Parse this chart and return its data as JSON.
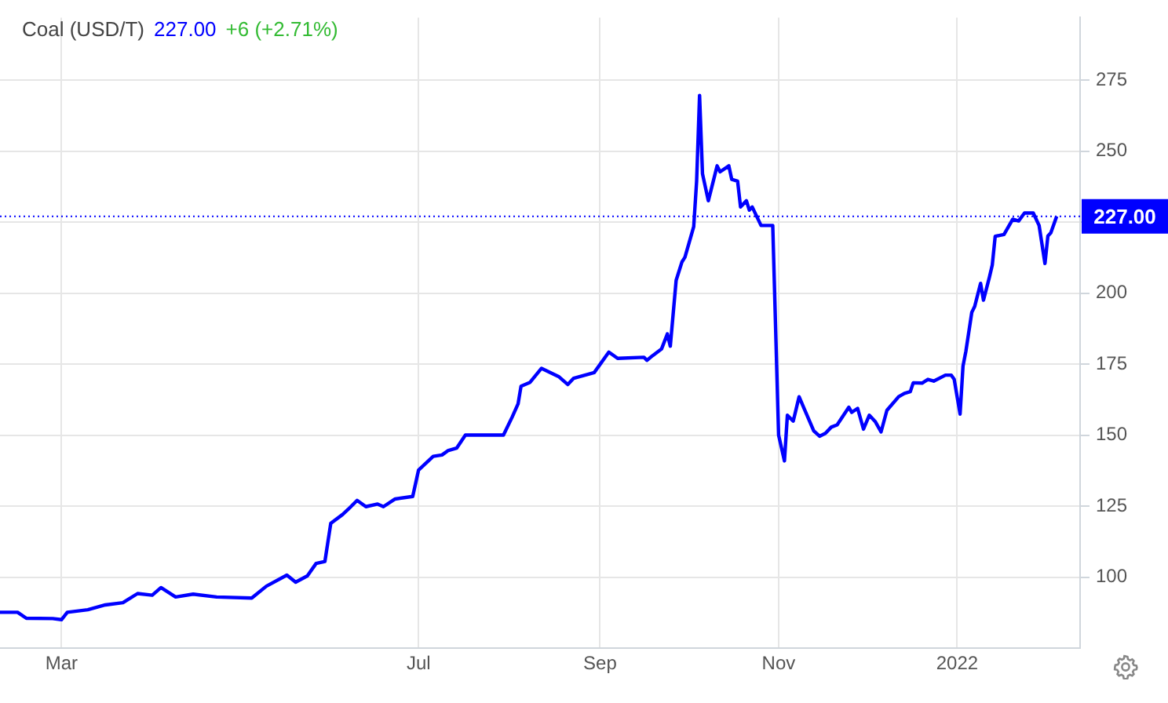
{
  "chart_data": {
    "type": "line",
    "title": "Coal (USD/T)",
    "annotations": [
      "227.00",
      "+6 (+2.71%)"
    ],
    "x": [
      "2021-02-08",
      "2021-02-14",
      "2021-02-17",
      "2021-02-26",
      "2021-03-01",
      "2021-03-03",
      "2021-03-10",
      "2021-03-16",
      "2021-03-22",
      "2021-03-27",
      "2021-04-01",
      "2021-04-04",
      "2021-04-09",
      "2021-04-15",
      "2021-04-23",
      "2021-05-05",
      "2021-05-10",
      "2021-05-17",
      "2021-05-20",
      "2021-05-24",
      "2021-05-27",
      "2021-05-30",
      "2021-06-01",
      "2021-06-05",
      "2021-06-07",
      "2021-06-10",
      "2021-06-13",
      "2021-06-17",
      "2021-06-19",
      "2021-06-23",
      "2021-06-29",
      "2021-07-01",
      "2021-07-06",
      "2021-07-09",
      "2021-07-11",
      "2021-07-14",
      "2021-07-17",
      "2021-07-24",
      "2021-07-30",
      "2021-08-02",
      "2021-08-04",
      "2021-08-05",
      "2021-08-08",
      "2021-08-12",
      "2021-08-18",
      "2021-08-21",
      "2021-08-23",
      "2021-08-30",
      "2021-09-04",
      "2021-09-07",
      "2021-09-16",
      "2021-09-17",
      "2021-09-19",
      "2021-09-22",
      "2021-09-24",
      "2021-09-25",
      "2021-09-27",
      "2021-09-29",
      "2021-09-30",
      "2021-10-03",
      "2021-10-04",
      "2021-10-05",
      "2021-10-06",
      "2021-10-08",
      "2021-10-11",
      "2021-10-12",
      "2021-10-15",
      "2021-10-16",
      "2021-10-18",
      "2021-10-19",
      "2021-10-21",
      "2021-10-22",
      "2021-10-23",
      "2021-10-26",
      "2021-10-30",
      "2021-11-01",
      "2021-11-03",
      "2021-11-04",
      "2021-11-06",
      "2021-11-08",
      "2021-11-10",
      "2021-11-13",
      "2021-11-15",
      "2021-11-17",
      "2021-11-19",
      "2021-11-21",
      "2021-11-25",
      "2021-11-26",
      "2021-11-28",
      "2021-11-30",
      "2021-12-02",
      "2021-12-04",
      "2021-12-06",
      "2021-12-08",
      "2021-12-12",
      "2021-12-14",
      "2021-12-16",
      "2021-12-17",
      "2021-12-20",
      "2021-12-22",
      "2021-12-24",
      "2021-12-28",
      "2021-12-30",
      "2021-12-31",
      "2022-01-02",
      "2022-01-03",
      "2022-01-04",
      "2022-01-06",
      "2022-01-07",
      "2022-01-09",
      "2022-01-10",
      "2022-01-12",
      "2022-01-13",
      "2022-01-14",
      "2022-01-17",
      "2022-01-20",
      "2022-01-22",
      "2022-01-24",
      "2022-01-27",
      "2022-01-29",
      "2022-01-31",
      "2022-02-01",
      "2022-02-02",
      "2022-02-04"
    ],
    "series": [
      {
        "color": "#0000ff",
        "values": [
          87.6,
          87.6,
          85.5,
          85.4,
          85,
          87.6,
          88.5,
          90.2,
          91,
          94.2,
          93.6,
          96.3,
          93,
          94,
          93,
          92.6,
          96.8,
          100.7,
          98.2,
          100.4,
          104.8,
          105.5,
          118.9,
          122,
          123.9,
          127,
          124.8,
          125.7,
          124.8,
          127.5,
          128.4,
          137.7,
          142.5,
          143,
          144.5,
          145.4,
          150,
          150,
          150,
          156.4,
          161,
          167.2,
          168.5,
          173.5,
          170.5,
          167.8,
          170,
          172,
          179.2,
          177,
          177.4,
          176.3,
          178,
          180.3,
          185.6,
          181.3,
          204.5,
          211,
          212.6,
          223.4,
          239.5,
          269.6,
          242,
          232.5,
          244.8,
          242.7,
          244.8,
          240,
          239.4,
          230.3,
          232.5,
          229.2,
          230.3,
          223.8,
          223.8,
          150,
          140.9,
          157,
          154.9,
          163.5,
          158.7,
          151.5,
          149.6,
          150.6,
          152.8,
          153.6,
          159.8,
          158,
          159.4,
          152.1,
          157,
          154.8,
          151.1,
          158.7,
          163.5,
          164.7,
          165.3,
          168.4,
          168.3,
          169.6,
          169,
          171.1,
          171.1,
          169.6,
          157.4,
          174.3,
          179.6,
          193.2,
          195.3,
          203.4,
          197.5,
          205.5,
          209.9,
          220,
          220.6,
          226,
          225.4,
          228.2,
          228.2,
          223.8,
          210.4,
          220.1,
          221.2,
          227
        ]
      }
    ],
    "xlim": [
      "2021-02-08",
      "2022-02-12"
    ],
    "xticks": [
      {
        "value": "2021-03-01",
        "label": "Mar"
      },
      {
        "value": "2021-07-01",
        "label": "Jul"
      },
      {
        "value": "2021-09-01",
        "label": "Sep"
      },
      {
        "value": "2021-11-01",
        "label": "Nov"
      },
      {
        "value": "2022-01-01",
        "label": "2022"
      }
    ],
    "ylim": [
      75,
      297
    ],
    "yticks": [
      100,
      125,
      150,
      175,
      200,
      {
        "value": 225,
        "label": null
      },
      250,
      275
    ],
    "ref_lines": [
      {
        "axis": "y",
        "value": 227,
        "label": "227.00",
        "color": "#0000ff",
        "line_style": "dotted"
      }
    ],
    "grid": true,
    "legend": false,
    "marker": "none",
    "line_style": "solid"
  }
}
